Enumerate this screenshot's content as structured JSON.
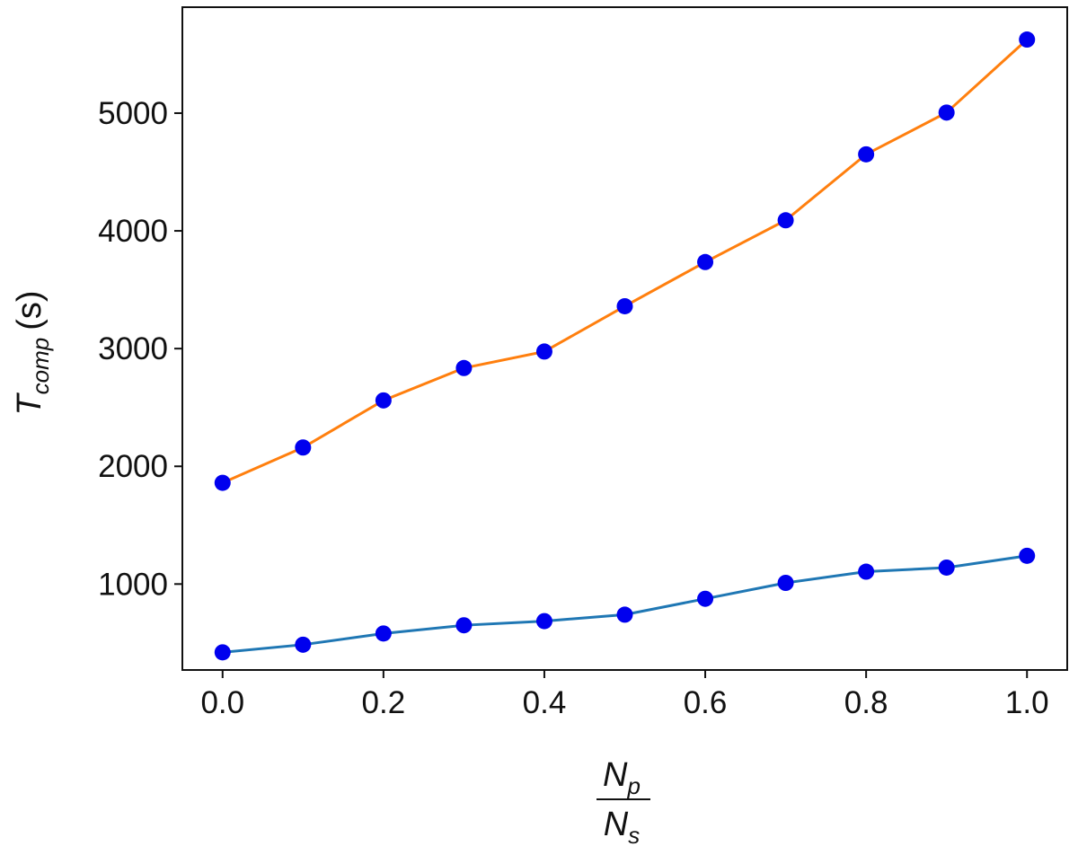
{
  "chart_data": {
    "type": "line",
    "xlabel": {
      "numerator": "N",
      "numerator_sub": "p",
      "denominator": "N",
      "denominator_sub": "s"
    },
    "ylabel": {
      "symbol": "T",
      "subscript": "comp",
      "unit": "(s)"
    },
    "xlim": [
      -0.05,
      1.05
    ],
    "ylim": [
      270,
      5900
    ],
    "xticks": [
      0.0,
      0.2,
      0.4,
      0.6,
      0.8,
      1.0
    ],
    "xtick_labels": [
      "0.0",
      "0.2",
      "0.4",
      "0.6",
      "0.8",
      "1.0"
    ],
    "yticks": [
      1000,
      2000,
      3000,
      4000,
      5000
    ],
    "ytick_labels": [
      "1000",
      "2000",
      "3000",
      "4000",
      "5000"
    ],
    "grid": false,
    "marker_color": "#0000ee",
    "x": [
      0.0,
      0.1,
      0.2,
      0.3,
      0.4,
      0.5,
      0.6,
      0.7,
      0.8,
      0.9,
      1.0
    ],
    "series": [
      {
        "color": "#ff7f0e",
        "values": [
          1860,
          2160,
          2560,
          2835,
          2975,
          3360,
          3735,
          4090,
          4650,
          5005,
          5625
        ]
      },
      {
        "color": "#1f77b4",
        "values": [
          420,
          485,
          580,
          650,
          685,
          740,
          875,
          1010,
          1105,
          1140,
          1240
        ]
      }
    ]
  }
}
